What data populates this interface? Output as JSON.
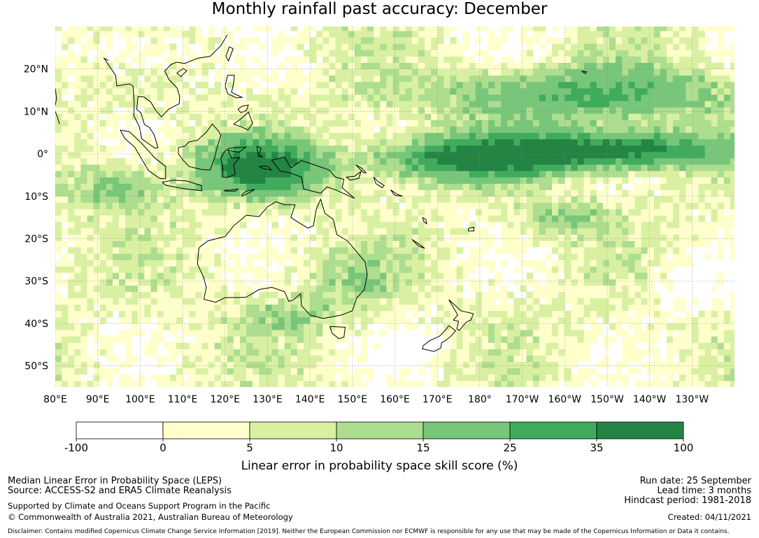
{
  "title": "Monthly rainfall past accuracy: December",
  "map": {
    "lat_labels": [
      "20°N",
      "10°N",
      "0°",
      "10°S",
      "20°S",
      "30°S",
      "40°S",
      "50°S"
    ],
    "lon_labels": [
      "80°E",
      "90°E",
      "100°E",
      "110°E",
      "120°E",
      "130°E",
      "140°E",
      "150°E",
      "160°E",
      "170°E",
      "180°",
      "170°W",
      "160°W",
      "150°W",
      "140°W",
      "130°W"
    ],
    "lat_range": [
      -55,
      30
    ],
    "lon_range": [
      80,
      240
    ],
    "grid": true
  },
  "colorbar": {
    "title": "Linear error in probability space skill score (%)",
    "tick_labels": [
      "-100",
      "0",
      "5",
      "10",
      "15",
      "25",
      "35",
      "100"
    ],
    "colors": [
      "#ffffff",
      "#ffffcc",
      "#d9f0a3",
      "#addd8e",
      "#78c679",
      "#41ab5d",
      "#238443"
    ]
  },
  "footer": {
    "left_line1": "Median Linear Error in Probability Space (LEPS)",
    "left_line2": "Source: ACCESS-S2 and ERA5 Climate Reanalysis",
    "left_line3": "Supported by Climate and Oceans Support Program in the Pacific",
    "left_line4": "© Commonwealth of Australia 2021, Australian Bureau of Meteorology",
    "right_line1": "Run date: 25 September",
    "right_line2": "Lead time: 3 months",
    "right_line3": "Hindcast period: 1981-2018",
    "right_line4": "Created: 04/11/2021",
    "disclaimer": "Disclaimer: Contains modified Copernicus Climate Change Service Information [2019]. Neither the European Commission nor ECMWF is responsible for any use that may be made of the Copernicus Information or Data it contains."
  }
}
